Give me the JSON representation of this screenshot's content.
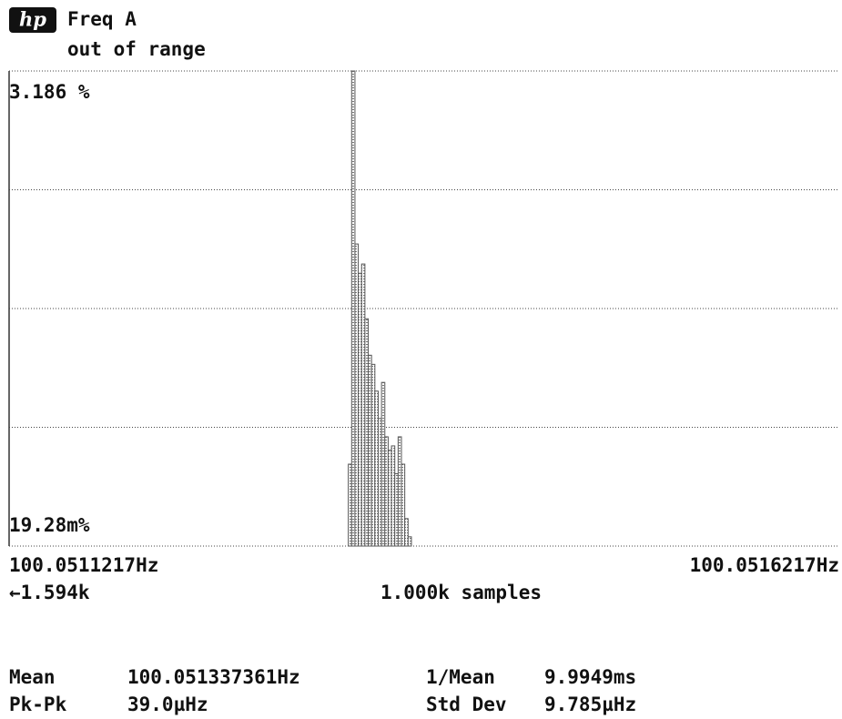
{
  "header": {
    "logo": "hp",
    "title": "Freq A",
    "status": "out of range"
  },
  "chart_data": {
    "type": "histogram",
    "bins": [
      100.051326,
      100.051328,
      100.05133,
      100.051332,
      100.051334,
      100.051336,
      100.051338,
      100.05134,
      100.051342,
      100.051344,
      100.051346,
      100.051348,
      100.05135,
      100.051352,
      100.051354,
      100.051356,
      100.051358,
      100.05136,
      100.051362,
      100.051364
    ],
    "values": [
      0.0465,
      3.186,
      0.496,
      0.362,
      0.4,
      0.222,
      0.15,
      0.136,
      0.102,
      0.076,
      0.112,
      0.0624,
      0.054,
      0.0566,
      0.042,
      0.0624,
      0.0465,
      0.0259,
      0.0213
    ],
    "color": "#555555",
    "log_y": true,
    "grid": true,
    "xlim": [
      100.0511217,
      100.0516217
    ],
    "xticks": [
      {
        "value": 100.0511217,
        "label": "100.0511217Hz"
      },
      {
        "value": 100.0516217,
        "label": "100.0516217Hz"
      }
    ],
    "ylim": [
      0.01928,
      3.186
    ],
    "yticks": [
      {
        "value": 0.01928,
        "label": "19.28m%"
      },
      {
        "value": 3.186,
        "label": "3.186 %"
      }
    ],
    "underflow": "←1.594k",
    "samples": "1.000k samples"
  },
  "stats": [
    {
      "label": "Mean",
      "value": "100.051337361Hz"
    },
    {
      "label": "1/Mean",
      "value": "9.9949ms"
    },
    {
      "label": "Pk-Pk",
      "value": "39.0µHz"
    },
    {
      "label": "Std Dev",
      "value": "9.785µHz"
    }
  ]
}
